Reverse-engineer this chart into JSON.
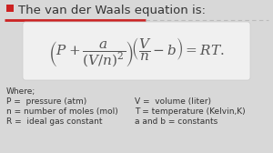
{
  "title": "The van der Waals equation is:",
  "title_color": "#333333",
  "checkbox_color": "#cc2222",
  "line_color_red": "#cc2222",
  "line_color_gray": "#bbbbbb",
  "bg_color": "#d8d8d8",
  "box_bg": "#f0f0f0",
  "formula": "\\left( P + \\dfrac{a}{(V/n)^2} \\right)\\left( \\dfrac{V}{n} - b \\right) = RT.",
  "where_text": "Where;",
  "defs_left": [
    "P =  pressure (atm)",
    "n = number of moles (mol)",
    "R =  ideal gas constant"
  ],
  "defs_right": [
    "V =  volume (liter)",
    "T = temperature (Kelvin,K)",
    "a and b = constants"
  ],
  "font_size_title": 9.5,
  "font_size_formula": 11,
  "font_size_defs": 6.5
}
